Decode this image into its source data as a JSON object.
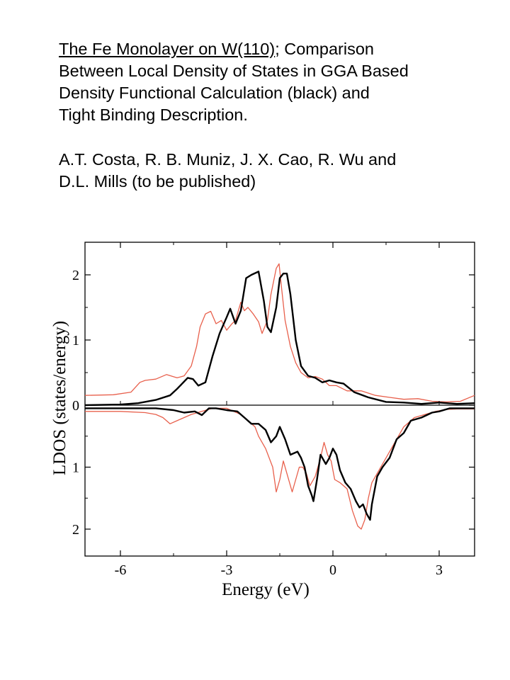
{
  "caption": {
    "title_underlined": "The Fe Monolayer on W(110)",
    "title_rest": "; Comparison",
    "line2": "Between Local Density of States in GGA Based",
    "line3": "Density Functional Calculation (black) and",
    "line4": "Tight Binding Description.",
    "authors1": "A.T. Costa, R. B. Muniz, J. X. Cao, R. Wu and",
    "authors2": "D.L. Mills (to be published)"
  },
  "chart_data": {
    "type": "line",
    "xlabel": "Energy (eV)",
    "ylabel": "LDOS (states/energy)",
    "xlim": [
      -7,
      4
    ],
    "xticks": [
      -6,
      -3,
      0,
      3
    ],
    "xtick_labels": [
      "-6",
      "-3",
      "0",
      "3"
    ],
    "colors": {
      "gga": "#000000",
      "tb": "#e8604c"
    },
    "panels": [
      {
        "name": "upper",
        "ylim": [
          0,
          2.5
        ],
        "yticks": [
          0,
          1,
          2
        ],
        "ytick_labels": [
          "0",
          "1",
          "2"
        ],
        "series": [
          {
            "key": "gga",
            "color": "#000000",
            "x": [
              -7.0,
              -6.0,
              -5.5,
              -5.0,
              -4.6,
              -4.4,
              -4.1,
              -3.95,
              -3.8,
              -3.6,
              -3.4,
              -3.2,
              -3.0,
              -2.9,
              -2.75,
              -2.6,
              -2.45,
              -2.3,
              -2.1,
              -1.95,
              -1.85,
              -1.75,
              -1.6,
              -1.5,
              -1.4,
              -1.3,
              -1.2,
              -1.05,
              -0.9,
              -0.7,
              -0.5,
              -0.3,
              -0.1,
              0.1,
              0.3,
              0.6,
              1.0,
              1.5,
              2.0,
              2.5,
              3.0,
              3.5,
              4.0
            ],
            "y": [
              0.0,
              0.01,
              0.03,
              0.08,
              0.15,
              0.25,
              0.42,
              0.4,
              0.3,
              0.35,
              0.75,
              1.1,
              1.35,
              1.48,
              1.25,
              1.45,
              1.95,
              2.0,
              2.05,
              1.6,
              1.2,
              1.12,
              1.5,
              1.95,
              2.02,
              2.02,
              1.7,
              1.0,
              0.6,
              0.45,
              0.42,
              0.35,
              0.38,
              0.35,
              0.33,
              0.2,
              0.12,
              0.05,
              0.04,
              0.02,
              0.04,
              0.02,
              0.03
            ]
          },
          {
            "key": "tb",
            "color": "#e8604c",
            "x": [
              -7.0,
              -6.2,
              -5.7,
              -5.45,
              -5.3,
              -5.0,
              -4.7,
              -4.4,
              -4.2,
              -4.0,
              -3.85,
              -3.75,
              -3.6,
              -3.45,
              -3.3,
              -3.15,
              -3.0,
              -2.85,
              -2.75,
              -2.6,
              -2.5,
              -2.4,
              -2.25,
              -2.1,
              -2.0,
              -1.85,
              -1.75,
              -1.6,
              -1.52,
              -1.45,
              -1.35,
              -1.2,
              -1.05,
              -0.9,
              -0.7,
              -0.5,
              -0.3,
              -0.1,
              0.1,
              0.4,
              0.8,
              1.2,
              1.6,
              2.0,
              2.4,
              2.8,
              3.2,
              3.6,
              4.0
            ],
            "y": [
              0.15,
              0.16,
              0.2,
              0.35,
              0.38,
              0.4,
              0.47,
              0.42,
              0.45,
              0.6,
              0.9,
              1.2,
              1.4,
              1.44,
              1.25,
              1.3,
              1.15,
              1.25,
              1.3,
              1.58,
              1.45,
              1.5,
              1.4,
              1.28,
              1.1,
              1.3,
              1.7,
              2.1,
              2.17,
              1.8,
              1.3,
              0.9,
              0.65,
              0.5,
              0.42,
              0.44,
              0.4,
              0.3,
              0.3,
              0.22,
              0.22,
              0.15,
              0.12,
              0.09,
              0.1,
              0.06,
              0.05,
              0.06,
              0.15
            ]
          }
        ]
      },
      {
        "name": "lower",
        "ylim": [
          0,
          2.4
        ],
        "inverted": true,
        "yticks": [
          1,
          2
        ],
        "ytick_labels": [
          "1",
          "2"
        ],
        "series": [
          {
            "key": "gga",
            "color": "#000000",
            "x": [
              -7.0,
              -6.0,
              -5.0,
              -4.5,
              -4.2,
              -3.9,
              -3.7,
              -3.5,
              -3.3,
              -3.0,
              -2.7,
              -2.5,
              -2.3,
              -2.1,
              -1.9,
              -1.75,
              -1.6,
              -1.5,
              -1.35,
              -1.2,
              -1.0,
              -0.9,
              -0.8,
              -0.7,
              -0.6,
              -0.55,
              -0.45,
              -0.35,
              -0.2,
              -0.1,
              0.0,
              0.1,
              0.2,
              0.35,
              0.5,
              0.65,
              0.75,
              0.85,
              0.95,
              1.05,
              1.1,
              1.25,
              1.4,
              1.6,
              1.8,
              2.0,
              2.2,
              2.5,
              2.8,
              3.0,
              3.3,
              3.6,
              4.0
            ],
            "y": [
              0.05,
              0.05,
              0.05,
              0.08,
              0.12,
              0.1,
              0.16,
              0.05,
              0.05,
              0.08,
              0.1,
              0.2,
              0.3,
              0.3,
              0.4,
              0.6,
              0.5,
              0.35,
              0.55,
              0.8,
              0.75,
              0.85,
              1.0,
              1.3,
              1.45,
              1.55,
              1.2,
              0.8,
              0.95,
              0.85,
              0.7,
              0.8,
              1.05,
              1.25,
              1.35,
              1.55,
              1.65,
              1.6,
              1.75,
              1.85,
              1.6,
              1.15,
              1.0,
              0.85,
              0.55,
              0.45,
              0.25,
              0.2,
              0.12,
              0.1,
              0.05,
              0.05,
              0.05
            ]
          },
          {
            "key": "tb",
            "color": "#e8604c",
            "x": [
              -7.0,
              -6.0,
              -5.3,
              -5.0,
              -4.8,
              -4.6,
              -4.4,
              -4.2,
              -4.0,
              -3.7,
              -3.4,
              -3.0,
              -2.8,
              -2.6,
              -2.4,
              -2.2,
              -2.1,
              -1.9,
              -1.7,
              -1.6,
              -1.5,
              -1.4,
              -1.3,
              -1.15,
              -1.05,
              -0.95,
              -0.85,
              -0.75,
              -0.65,
              -0.5,
              -0.35,
              -0.25,
              -0.15,
              -0.05,
              0.05,
              0.2,
              0.4,
              0.55,
              0.7,
              0.8,
              0.9,
              1.0,
              1.1,
              1.3,
              1.5,
              1.75,
              2.0,
              2.3,
              2.6,
              2.9,
              3.2,
              3.5,
              4.0
            ],
            "y": [
              0.1,
              0.1,
              0.12,
              0.15,
              0.2,
              0.3,
              0.25,
              0.2,
              0.15,
              0.1,
              0.05,
              0.05,
              0.1,
              0.15,
              0.25,
              0.35,
              0.5,
              0.7,
              1.0,
              1.4,
              1.2,
              0.9,
              1.1,
              1.4,
              1.2,
              1.0,
              1.0,
              1.1,
              1.3,
              1.15,
              0.85,
              0.6,
              0.8,
              0.9,
              1.2,
              1.25,
              1.35,
              1.7,
              1.95,
              2.0,
              1.85,
              1.5,
              1.25,
              1.05,
              0.85,
              0.6,
              0.35,
              0.2,
              0.15,
              0.1,
              0.07,
              0.06,
              0.06
            ]
          }
        ]
      }
    ]
  }
}
